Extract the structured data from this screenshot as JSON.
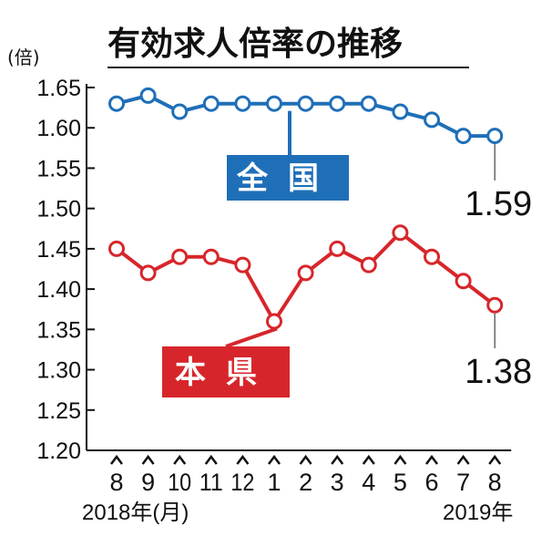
{
  "chart_data": {
    "type": "line",
    "title": "有効求人倍率の推移",
    "unit": "(倍)",
    "categories": [
      "8",
      "9",
      "10",
      "11",
      "12",
      "1",
      "2",
      "3",
      "4",
      "5",
      "6",
      "7",
      "8"
    ],
    "start_year_label": "2018年(月)",
    "end_year_label": "2019年",
    "ylim": [
      1.2,
      1.65
    ],
    "yticks": [
      "1.65",
      "1.60",
      "1.55",
      "1.50",
      "1.45",
      "1.40",
      "1.35",
      "1.30",
      "1.25",
      "1.20"
    ],
    "grid": false,
    "series": [
      {
        "name": "全国",
        "color": "#1f6fb8",
        "values": [
          1.63,
          1.64,
          1.62,
          1.63,
          1.63,
          1.63,
          1.63,
          1.63,
          1.63,
          1.62,
          1.61,
          1.59,
          1.59
        ],
        "end_label": "1.59"
      },
      {
        "name": "本県",
        "color": "#d7262b",
        "values": [
          1.45,
          1.42,
          1.44,
          1.44,
          1.43,
          1.36,
          1.42,
          1.45,
          1.43,
          1.47,
          1.44,
          1.41,
          1.38
        ],
        "end_label": "1.38"
      }
    ]
  }
}
